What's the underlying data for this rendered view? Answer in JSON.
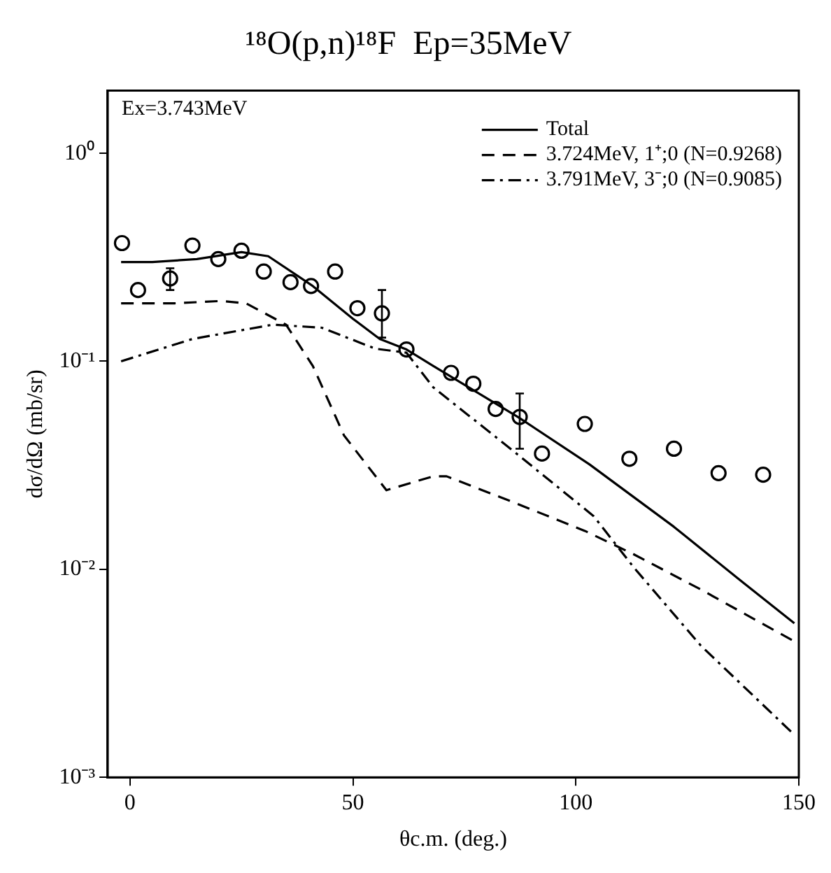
{
  "chart_data": {
    "type": "line",
    "title": "¹⁸O(p,n)¹⁸F  Ep=35MeV",
    "xlabel": "θc.m. (deg.)",
    "ylabel": "dσ/dΩ (mb/sr)",
    "annotations": [
      "Ex=3.743MeV"
    ],
    "log": "y",
    "grid": false,
    "legend": "top right",
    "xlim": [
      -5,
      150
    ],
    "xticks": [
      0,
      50,
      100,
      150
    ],
    "ylim": [
      0.001,
      2
    ],
    "yticks": [
      {
        "value": 0.001,
        "label": "10⁻³"
      },
      {
        "value": 0.01,
        "label": "10⁻²"
      },
      {
        "value": 0.1,
        "label": "10⁻¹"
      },
      {
        "value": 1,
        "label": "10⁰"
      }
    ],
    "series": [
      {
        "type": "line",
        "name": "Total",
        "color": "#000000",
        "line_style": "solid",
        "x": [
          -2,
          5,
          15,
          25,
          31,
          41,
          50,
          56,
          62,
          68,
          87,
          103,
          122,
          137,
          149
        ],
        "values": [
          0.3,
          0.3,
          0.31,
          0.335,
          0.32,
          0.23,
          0.16,
          0.128,
          0.114,
          0.095,
          0.054,
          0.032,
          0.016,
          0.0088,
          0.0055
        ]
      },
      {
        "type": "line",
        "name": "3.724MeV, 1⁺;0 (N=0.9268)",
        "color": "#000000",
        "line_style": "dashed",
        "x": [
          -2,
          10,
          20.5,
          26,
          35,
          41,
          48,
          57.5,
          68,
          71,
          86,
          102,
          113,
          128,
          149
        ],
        "values": [
          0.19,
          0.19,
          0.195,
          0.19,
          0.15,
          0.095,
          0.044,
          0.024,
          0.028,
          0.028,
          0.021,
          0.0153,
          0.0118,
          0.008,
          0.0045
        ]
      },
      {
        "type": "line",
        "name": "3.791MeV, 3⁻;0 (N=0.9085)",
        "color": "#000000",
        "line_style": "dash-dot",
        "x": [
          -2,
          14,
          32,
          43,
          55,
          62,
          68,
          86,
          104,
          113,
          128,
          149
        ],
        "values": [
          0.1,
          0.128,
          0.15,
          0.145,
          0.115,
          0.11,
          0.075,
          0.037,
          0.018,
          0.0102,
          0.0043,
          0.0016
        ]
      },
      {
        "type": "scatter",
        "color": "#000000",
        "marker": "circle",
        "x": [
          -1.8,
          1.8,
          9,
          14,
          19.8,
          25,
          30,
          36,
          40.6,
          46,
          51,
          56.5,
          62,
          72,
          77,
          82,
          87.4,
          92.4,
          102,
          112,
          122,
          132,
          142
        ],
        "values": [
          0.37,
          0.22,
          0.25,
          0.36,
          0.31,
          0.34,
          0.27,
          0.24,
          0.23,
          0.27,
          0.18,
          0.17,
          0.114,
          0.088,
          0.078,
          0.059,
          0.054,
          0.036,
          0.05,
          0.034,
          0.038,
          0.029,
          0.0285
        ],
        "errors": [
          null,
          null,
          [
            0.22,
            0.28
          ],
          null,
          null,
          null,
          null,
          null,
          null,
          null,
          null,
          [
            0.13,
            0.22
          ],
          null,
          null,
          null,
          null,
          [
            0.038,
            0.07
          ],
          null,
          null,
          null,
          null,
          null,
          null
        ]
      }
    ]
  }
}
